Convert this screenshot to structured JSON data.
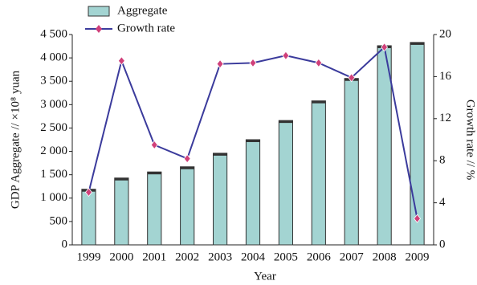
{
  "chart_data": {
    "type": "bar-line",
    "categories": [
      "1999",
      "2000",
      "2001",
      "2002",
      "2003",
      "2004",
      "2005",
      "2006",
      "2007",
      "2008",
      "2009"
    ],
    "series": [
      {
        "name": "Aggregate",
        "type": "bar",
        "color": "#a3d4d2",
        "values": [
          1190,
          1430,
          1560,
          1670,
          1960,
          2250,
          2660,
          3080,
          3560,
          4260,
          4330
        ]
      },
      {
        "name": "Growth rate",
        "type": "line",
        "axis": "y2",
        "color": "#3b3b9c",
        "marker_color": "#d0407a",
        "values": [
          5.0,
          17.5,
          9.5,
          8.2,
          17.2,
          17.3,
          18.0,
          17.3,
          15.9,
          18.8,
          2.5
        ]
      }
    ],
    "xlabel": "Year",
    "ylabel": "GDP Aggregate // ×10⁸ yuan",
    "y2label": "Growth rate // %",
    "ylim": [
      0,
      4500
    ],
    "yticks": [
      0,
      500,
      {
        "value": 1000,
        "label": "1 000"
      },
      {
        "value": 1500,
        "label": "1 500"
      },
      {
        "value": 2000,
        "label": "2 000"
      },
      {
        "value": 2500,
        "label": "2 500"
      },
      {
        "value": 3000,
        "label": "3 000"
      },
      {
        "value": 3500,
        "label": "3 500"
      },
      {
        "value": 4000,
        "label": "4 000"
      },
      {
        "value": 4500,
        "label": "4 500"
      }
    ],
    "y2lim": [
      0,
      20
    ],
    "y2ticks": [
      0,
      4,
      8,
      12,
      16,
      20
    ]
  }
}
